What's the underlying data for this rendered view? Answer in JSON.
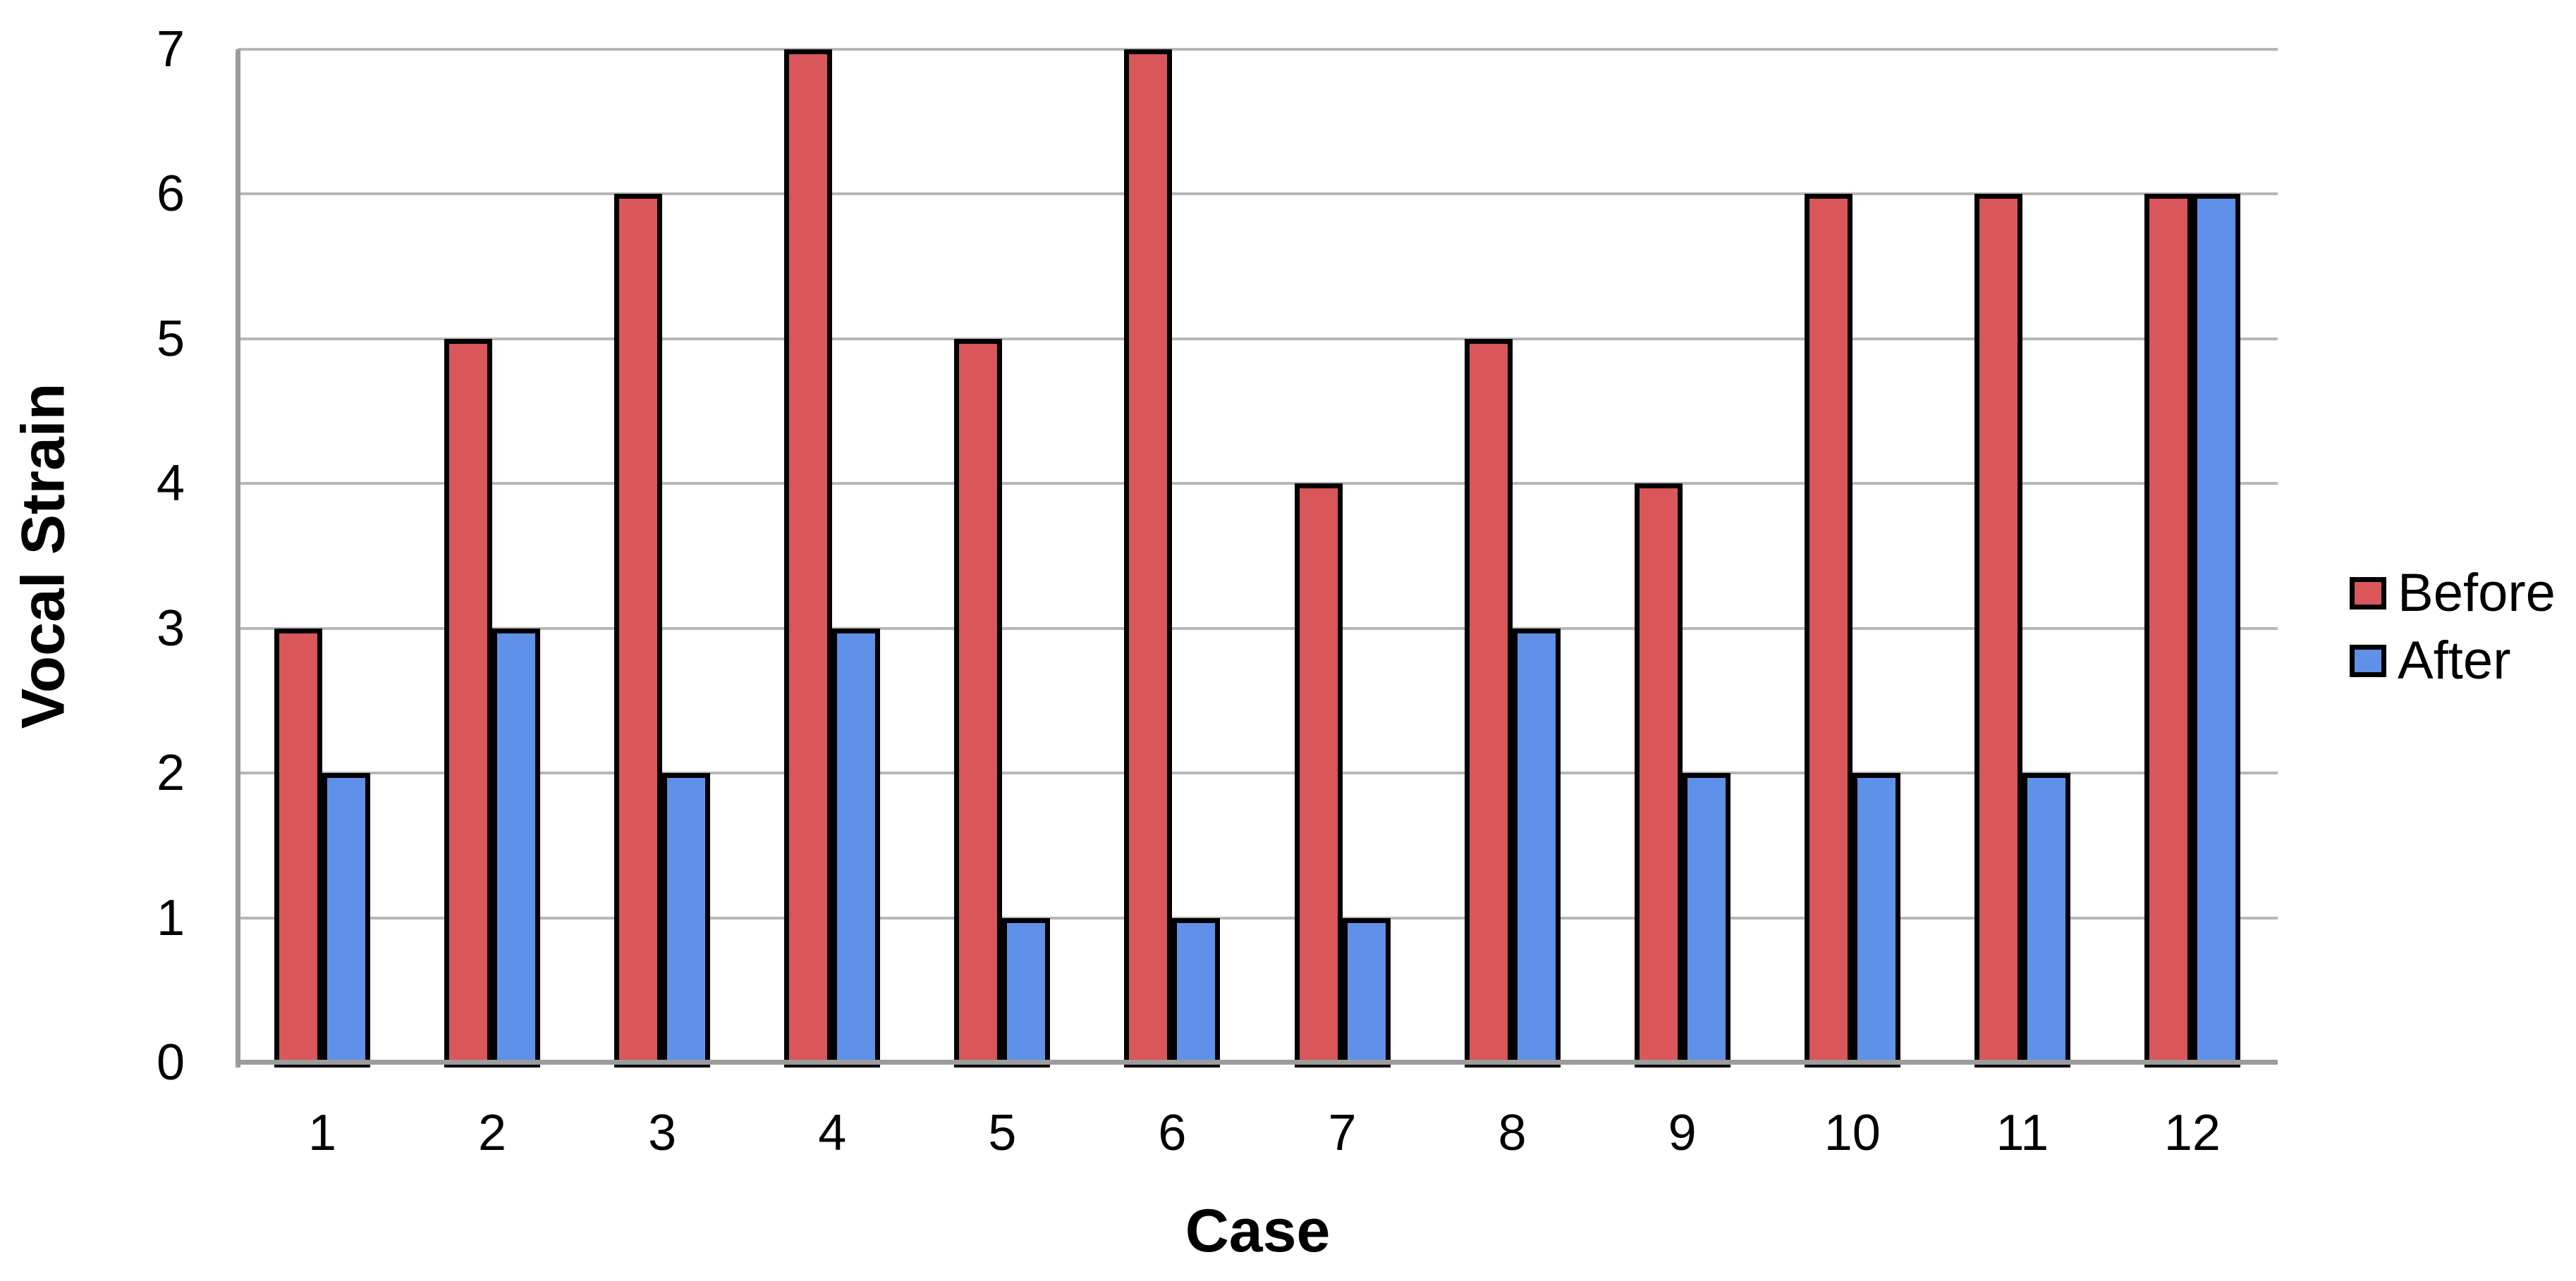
{
  "chart_data": {
    "type": "bar",
    "title": "",
    "categories": [
      "1",
      "2",
      "3",
      "4",
      "5",
      "6",
      "7",
      "8",
      "9",
      "10",
      "11",
      "12"
    ],
    "series": [
      {
        "name": "Before",
        "color": "#D9565A",
        "values": [
          3,
          5,
          6,
          7,
          5,
          7,
          4,
          5,
          4,
          6,
          6,
          6
        ]
      },
      {
        "name": "After",
        "color": "#5F91E8",
        "values": [
          2,
          3,
          2,
          3,
          1,
          1,
          1,
          3,
          2,
          2,
          2,
          6
        ]
      }
    ],
    "xlabel": "Case",
    "ylabel": "Vocal Strain",
    "ylim": [
      0,
      7
    ],
    "yticks": [
      0,
      1,
      2,
      3,
      4,
      5,
      6,
      7
    ],
    "grid": true,
    "legend_position": "right",
    "colors": {
      "gridline": "#B7B7B7",
      "axis": "#9C9C9C",
      "bar_border": "#000000",
      "text": "#000000",
      "background": "#FFFFFF"
    }
  }
}
